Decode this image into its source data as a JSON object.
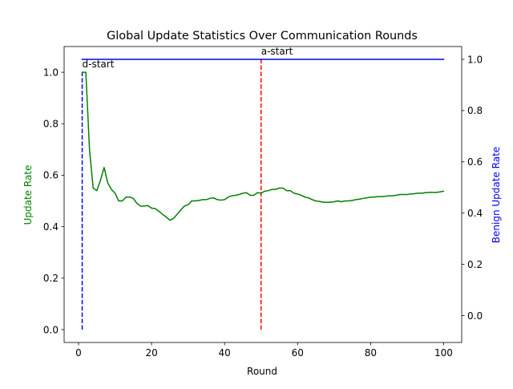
{
  "chart_data": {
    "type": "line",
    "title": "Global Update Statistics Over Communication Rounds",
    "xlabel": "Round",
    "ylabel_left": "Update Rate",
    "ylabel_right": "Benign Update Rate",
    "xlim": [
      -3.95,
      104.95
    ],
    "ylim_left": [
      -0.05,
      1.1
    ],
    "ylim_right": [
      -0.105,
      1.05
    ],
    "x_ticks": [
      0,
      20,
      40,
      60,
      80,
      100
    ],
    "y_left_ticks": [
      0.0,
      0.2,
      0.4,
      0.6,
      0.8,
      1.0
    ],
    "y_right_ticks": [
      0.0,
      0.2,
      0.4,
      0.6,
      0.8,
      1.0
    ],
    "grid": false,
    "series": [
      {
        "axis": "left",
        "color": "#008000",
        "x": [
          1,
          2,
          3,
          4,
          5,
          6,
          7,
          8,
          9,
          10,
          11,
          12,
          13,
          14,
          15,
          16,
          17,
          18,
          19,
          20,
          21,
          22,
          23,
          24,
          25,
          26,
          27,
          28,
          29,
          30,
          31,
          32,
          33,
          34,
          35,
          36,
          37,
          38,
          39,
          40,
          41,
          42,
          43,
          44,
          45,
          46,
          47,
          48,
          49,
          50,
          51,
          52,
          53,
          54,
          55,
          56,
          57,
          58,
          59,
          60,
          61,
          62,
          63,
          64,
          65,
          66,
          67,
          68,
          69,
          70,
          71,
          72,
          73,
          74,
          75,
          76,
          77,
          78,
          79,
          80,
          81,
          82,
          83,
          84,
          85,
          86,
          87,
          88,
          89,
          90,
          91,
          92,
          93,
          94,
          95,
          96,
          97,
          98,
          99,
          100
        ],
        "values": [
          1.0,
          1.0,
          0.7,
          0.55,
          0.54,
          0.58,
          0.63,
          0.57,
          0.545,
          0.53,
          0.5,
          0.5,
          0.515,
          0.515,
          0.51,
          0.49,
          0.48,
          0.48,
          0.482,
          0.472,
          0.47,
          0.46,
          0.448,
          0.438,
          0.425,
          0.432,
          0.448,
          0.465,
          0.48,
          0.485,
          0.5,
          0.5,
          0.502,
          0.505,
          0.505,
          0.51,
          0.512,
          0.505,
          0.503,
          0.505,
          0.515,
          0.52,
          0.522,
          0.525,
          0.53,
          0.532,
          0.522,
          0.522,
          0.532,
          0.53,
          0.538,
          0.54,
          0.545,
          0.545,
          0.55,
          0.55,
          0.54,
          0.54,
          0.53,
          0.527,
          0.522,
          0.515,
          0.512,
          0.505,
          0.5,
          0.498,
          0.495,
          0.495,
          0.495,
          0.497,
          0.5,
          0.497,
          0.5,
          0.5,
          0.502,
          0.505,
          0.507,
          0.51,
          0.512,
          0.515,
          0.515,
          0.517,
          0.517,
          0.518,
          0.52,
          0.52,
          0.522,
          0.525,
          0.525,
          0.525,
          0.527,
          0.528,
          0.53,
          0.53,
          0.532,
          0.533,
          0.533,
          0.533,
          0.535,
          0.538
        ]
      },
      {
        "axis": "right",
        "color": "#0000ff",
        "x": [
          1,
          100
        ],
        "values": [
          1.0,
          1.0
        ]
      }
    ],
    "vlines": [
      {
        "x": 1,
        "color": "#0000ff",
        "style": "dashed",
        "label": "d-start",
        "from": 0.0,
        "to": 1.0
      },
      {
        "x": 50,
        "color": "#ff0000",
        "style": "dashed",
        "label": "a-start",
        "from": 0.0,
        "to": 1.05
      }
    ]
  }
}
